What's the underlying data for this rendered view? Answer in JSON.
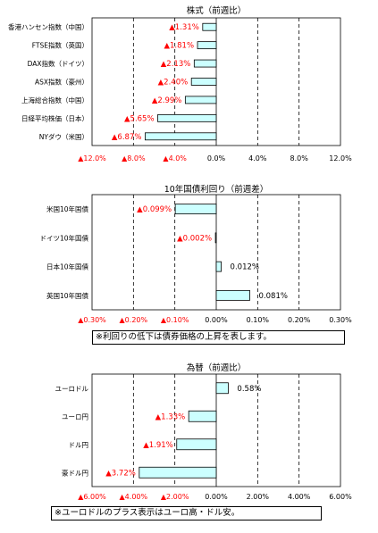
{
  "colors": {
    "bar_fill": "#ccffff",
    "bar_stroke": "#000000",
    "negative_label": "#ff0000",
    "positive_label": "#000000"
  },
  "chart_data": [
    {
      "type": "bar",
      "orientation": "horizontal",
      "title": "株式（前週比）",
      "categories": [
        "香港ハンセン指数（中国）",
        "FTSE指数（英国）",
        "DAX指数（ドイツ）",
        "ASX指数（豪州）",
        "上海総合指数（中国）",
        "日経平均株価（日本）",
        "NYダウ（米国）"
      ],
      "values": [
        -1.31,
        -1.81,
        -2.13,
        -2.4,
        -2.99,
        -5.65,
        -6.87
      ],
      "value_labels": [
        "▲1.31%",
        "▲1.81%",
        "▲2.13%",
        "▲2.40%",
        "▲2.99%",
        "▲5.65%",
        "▲6.87%"
      ],
      "xlim": [
        -12,
        12
      ],
      "ticks": [
        -12,
        -8,
        -4,
        0,
        4,
        8,
        12
      ],
      "tick_labels": [
        "▲12.0%",
        "▲8.0%",
        "▲4.0%",
        "0.0%",
        "4.0%",
        "8.0%",
        "12.0%"
      ],
      "grid": "vertical dashed"
    },
    {
      "type": "bar",
      "orientation": "horizontal",
      "title": "10年国債利回り（前週差）",
      "categories": [
        "米国10年国債",
        "ドイツ10年国債",
        "日本10年国債",
        "英国10年国債"
      ],
      "values": [
        -0.099,
        -0.002,
        0.012,
        0.081
      ],
      "value_labels": [
        "▲0.099%",
        "▲0.002%",
        "0.012%",
        "0.081%"
      ],
      "xlim": [
        -0.3,
        0.3
      ],
      "ticks": [
        -0.3,
        -0.2,
        -0.1,
        0,
        0.1,
        0.2,
        0.3
      ],
      "tick_labels": [
        "▲0.30%",
        "▲0.20%",
        "▲0.10%",
        "0.00%",
        "0.10%",
        "0.20%",
        "0.30%"
      ],
      "grid": "vertical dashed",
      "note": "※利回りの低下は債券価格の上昇を表します。"
    },
    {
      "type": "bar",
      "orientation": "horizontal",
      "title": "為替（前週比）",
      "categories": [
        "ユーロドル",
        "ユーロ円",
        "ドル円",
        "豪ドル円"
      ],
      "values": [
        0.58,
        -1.33,
        -1.91,
        -3.72
      ],
      "value_labels": [
        "0.58%",
        "▲1.33%",
        "▲1.91%",
        "▲3.72%"
      ],
      "xlim": [
        -6,
        6
      ],
      "ticks": [
        -6,
        -4,
        -2,
        0,
        2,
        4,
        6
      ],
      "tick_labels": [
        "▲6.00%",
        "▲4.00%",
        "▲2.00%",
        "0.00%",
        "2.00%",
        "4.00%",
        "6.00%"
      ],
      "grid": "vertical dashed",
      "note": "※ユーロドルのプラス表示はユーロ高・ドル安。"
    }
  ]
}
